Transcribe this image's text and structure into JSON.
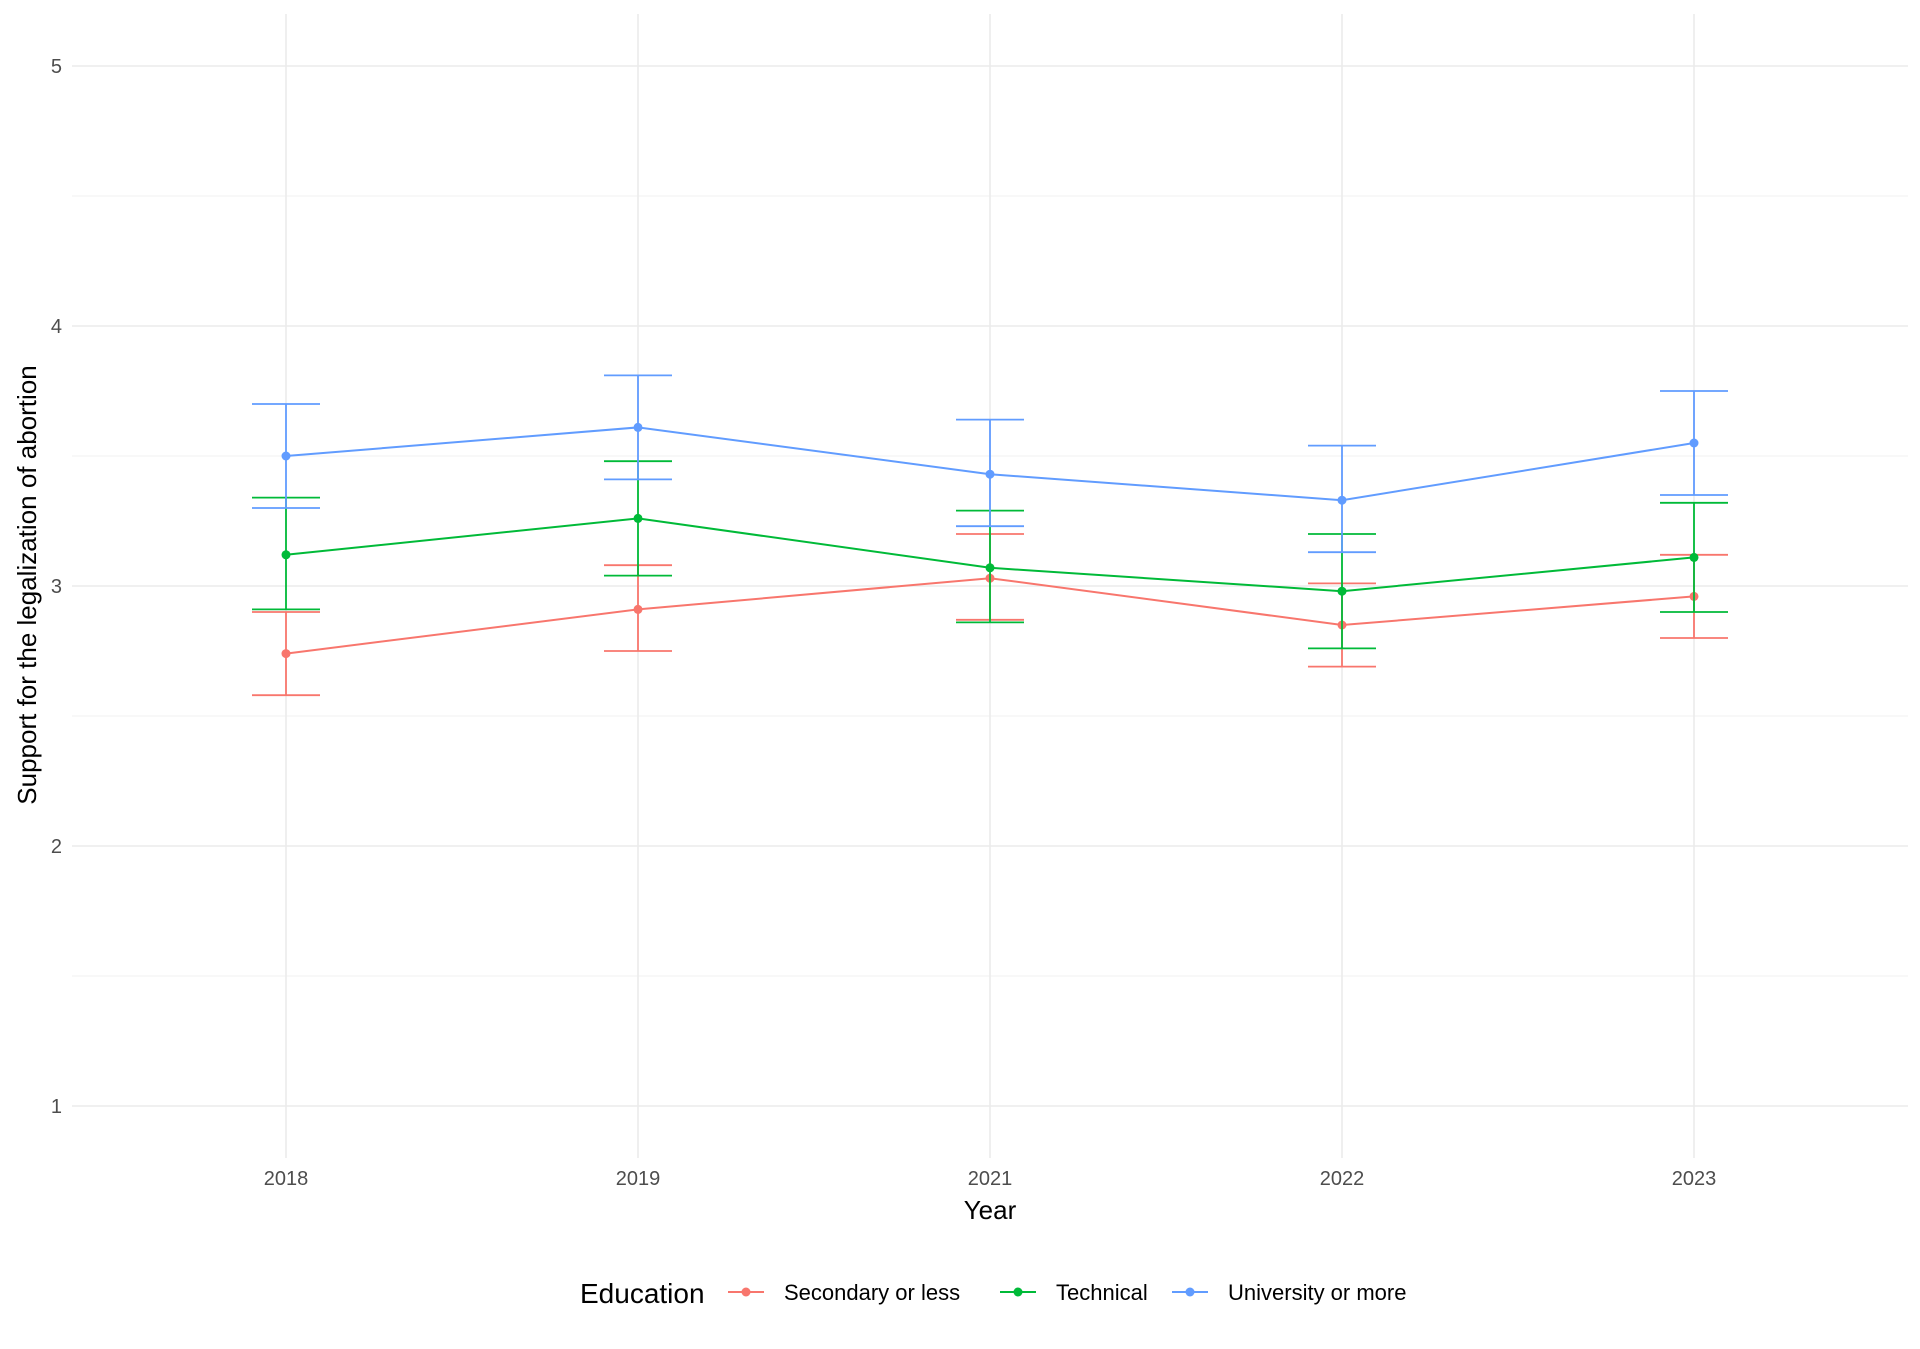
{
  "chart_data": {
    "type": "line",
    "title": "",
    "xlabel": "Year",
    "ylabel": "Support for the legalization of abortion",
    "categories": [
      "2018",
      "2019",
      "2021",
      "2022",
      "2023"
    ],
    "yticks": [
      "1",
      "2",
      "3",
      "4",
      "5"
    ],
    "ylim": [
      0.8,
      5.2
    ],
    "grid": true,
    "error_bars": true,
    "legend": {
      "title": "Education",
      "position": "bottom"
    },
    "series": [
      {
        "name": "Secondary or less",
        "color": "#F8766D",
        "values": [
          2.74,
          2.91,
          3.03,
          2.85,
          2.96
        ],
        "lower": [
          2.58,
          2.75,
          2.87,
          2.69,
          2.8
        ],
        "upper": [
          2.9,
          3.08,
          3.2,
          3.01,
          3.12
        ]
      },
      {
        "name": "Technical",
        "color": "#00BA38",
        "values": [
          3.12,
          3.26,
          3.07,
          2.98,
          3.11
        ],
        "lower": [
          2.91,
          3.04,
          2.86,
          2.76,
          2.9
        ],
        "upper": [
          3.34,
          3.48,
          3.29,
          3.2,
          3.32
        ]
      },
      {
        "name": "University or more",
        "color": "#619CFF",
        "values": [
          3.5,
          3.61,
          3.43,
          3.33,
          3.55
        ],
        "lower": [
          3.3,
          3.41,
          3.23,
          3.13,
          3.35
        ],
        "upper": [
          3.7,
          3.81,
          3.64,
          3.54,
          3.75
        ]
      }
    ]
  }
}
